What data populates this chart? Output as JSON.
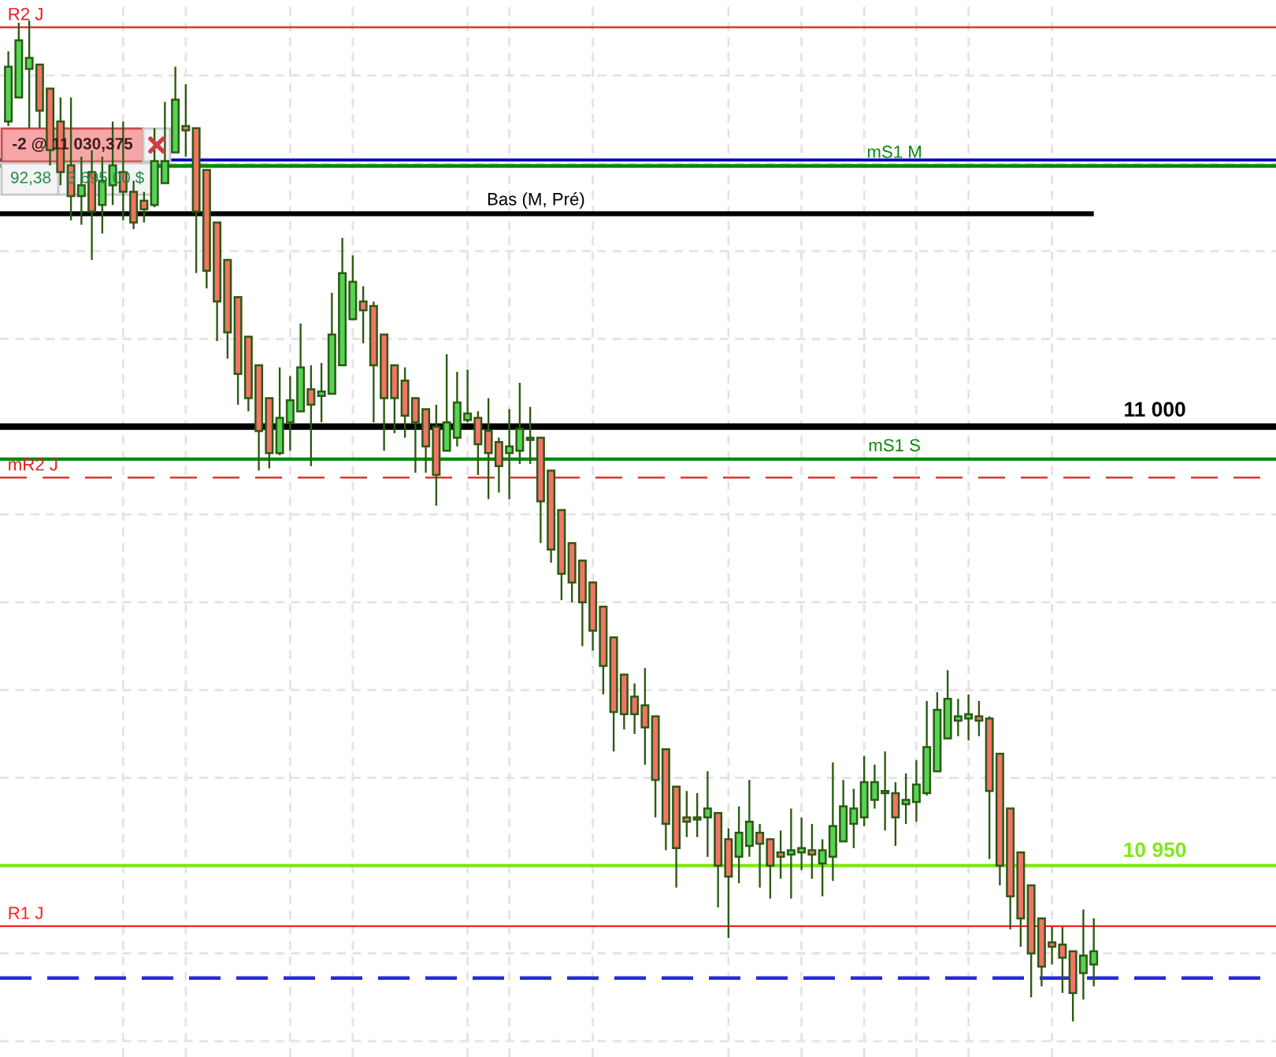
{
  "chart_data": {
    "type": "candlestick",
    "categories": [
      null,
      null,
      null,
      null,
      null,
      null,
      null,
      null,
      null,
      null,
      null,
      null,
      null,
      null,
      null,
      null,
      null,
      null,
      null,
      null,
      null,
      null,
      null,
      null,
      null,
      null,
      null,
      null,
      null,
      null,
      null,
      null,
      null,
      null,
      null,
      null,
      null,
      null,
      null,
      null,
      null,
      null,
      null,
      null,
      null,
      null,
      null,
      null,
      null,
      null,
      null,
      null,
      null,
      null,
      null,
      null,
      null,
      null,
      null,
      null,
      null,
      null,
      null,
      null,
      null,
      null,
      null,
      null,
      null,
      null,
      null,
      null,
      null,
      null,
      null,
      null,
      null,
      null,
      null,
      null,
      null,
      null,
      null,
      null,
      null,
      null,
      null,
      null,
      null,
      null,
      null,
      null,
      null,
      null,
      null,
      null,
      null,
      null,
      null,
      null,
      null,
      null,
      null,
      null,
      null
    ],
    "ohlc": [
      [
        11034.75,
        11042.75,
        11034.25,
        11041
      ],
      [
        11037.5,
        11046,
        11037.5,
        11044
      ],
      [
        11040.75,
        11046.25,
        11034,
        11042
      ],
      [
        11041.25,
        11041.25,
        11034,
        11036
      ],
      [
        11038.5,
        11038.5,
        11029.75,
        11031.5
      ],
      [
        11034.75,
        11037.5,
        11027.5,
        11029
      ],
      [
        11029.75,
        11037.5,
        11023.5,
        11026.25
      ],
      [
        11026.25,
        11030.75,
        11023,
        11027.5
      ],
      [
        11029,
        11031.5,
        11019,
        11024.5
      ],
      [
        11025.25,
        11030.75,
        11022,
        11028
      ],
      [
        11027.5,
        11034.75,
        11025.25,
        11029.75
      ],
      [
        11029,
        11034.75,
        11023.5,
        11026.75
      ],
      [
        11026.75,
        11028,
        11022.5,
        11023.25
      ],
      [
        11025.75,
        11026.75,
        11023.25,
        11024.75
      ],
      [
        11025.25,
        11034,
        11025,
        11030.25
      ],
      [
        11027.75,
        11037,
        11027.75,
        11030.25
      ],
      [
        11031.25,
        11041,
        11031.25,
        11037.25
      ],
      [
        11034.25,
        11039,
        11030.75,
        11033.75
      ],
      [
        11034,
        11034,
        11017.5,
        11024.5
      ],
      [
        11029.25,
        11029.25,
        11015.75,
        11017.75
      ],
      [
        11023.25,
        11023.25,
        11009.75,
        11014.25
      ],
      [
        11019,
        11019,
        11007.75,
        11010.75
      ],
      [
        11014.75,
        11014.75,
        11002.5,
        11006
      ],
      [
        11010.25,
        11010.25,
        11001.75,
        11003.25
      ],
      [
        11007,
        11007,
        10995,
        10999.5
      ],
      [
        11003.25,
        11003.25,
        10995.25,
        10997
      ],
      [
        10997,
        11006.75,
        10996.75,
        11001
      ],
      [
        11000.5,
        11005.75,
        10997.25,
        11003
      ],
      [
        11001.75,
        11011.75,
        11001.75,
        11006.75
      ],
      [
        11004.25,
        11007,
        10995.5,
        11002.5
      ],
      [
        11003.5,
        11007.25,
        11000.5,
        11004
      ],
      [
        11003.75,
        11015.25,
        11003.75,
        11010.5
      ],
      [
        11007,
        11021.5,
        11007,
        11017.5
      ],
      [
        11012.25,
        11019.5,
        11012.25,
        11016.5
      ],
      [
        11014.25,
        11016,
        11009.5,
        11013.25
      ],
      [
        11013.75,
        11014.25,
        11000.5,
        11007
      ],
      [
        11010.5,
        11010.5,
        10997.25,
        11003.25
      ],
      [
        11007,
        11007,
        10999.25,
        11003.25
      ],
      [
        11005.25,
        11006.75,
        10998.75,
        11001.25
      ],
      [
        11003.25,
        11003.25,
        10994.75,
        11000.5
      ],
      [
        11002,
        11002,
        10994.75,
        10997.75
      ],
      [
        11000,
        11002.5,
        10991,
        10994.5
      ],
      [
        10997.25,
        11008.25,
        10997.25,
        11000.5
      ],
      [
        10998.75,
        11006.25,
        10997.75,
        11002.75
      ],
      [
        11000.75,
        11006.5,
        11000.5,
        11001.5
      ],
      [
        11001,
        11001.75,
        10994.5,
        10998
      ],
      [
        10999.5,
        11003.25,
        10991.75,
        10997
      ],
      [
        10998.25,
        10998.75,
        10992.5,
        10995.5
      ],
      [
        10997,
        11002,
        10991.75,
        10997.75
      ],
      [
        10997.25,
        11005,
        10995.75,
        10999.75
      ],
      [
        10998.75,
        11002.25,
        10995.75,
        10998.5
      ],
      [
        10998.75,
        10998.75,
        10986.75,
        10991.5
      ],
      [
        10995,
        10995,
        10984.5,
        10986
      ],
      [
        10990.5,
        10990.5,
        10980.25,
        10983.25
      ],
      [
        10986.75,
        10986.75,
        10980,
        10982.25
      ],
      [
        10984.75,
        10984.75,
        10975,
        10980
      ],
      [
        10982.25,
        10982.25,
        10974.5,
        10976.75
      ],
      [
        10979.5,
        10979.5,
        10969.5,
        10972.75
      ],
      [
        10976,
        10976,
        10963,
        10967.5
      ],
      [
        10971.75,
        10971.75,
        10965.5,
        10967.25
      ],
      [
        10969.25,
        10970.75,
        10965,
        10967.25
      ],
      [
        10968.25,
        10972.5,
        10961.5,
        10965.75
      ],
      [
        10967,
        10967,
        10955.5,
        10959.75
      ],
      [
        10963.25,
        10963.25,
        10951.75,
        10954.75
      ],
      [
        10959,
        10959,
        10947.5,
        10952
      ],
      [
        10955.5,
        10958.5,
        10953.25,
        10955
      ],
      [
        10955.25,
        10958.25,
        10953.25,
        10955.5
      ],
      [
        10955.5,
        10960.75,
        10951,
        10956.5
      ],
      [
        10956,
        10956,
        10945.25,
        10950
      ],
      [
        10953,
        10954.25,
        10941.75,
        10948.75
      ],
      [
        10951,
        10956.75,
        10948,
        10953.75
      ],
      [
        10952.25,
        10959.75,
        10951,
        10955
      ],
      [
        10953.75,
        10954.75,
        10947.5,
        10952.5
      ],
      [
        10953,
        10953,
        10946.25,
        10950
      ],
      [
        10951.5,
        10954,
        10948.5,
        10951
      ],
      [
        10951.25,
        10956.5,
        10946.25,
        10951.75
      ],
      [
        10951.5,
        10955.5,
        10949.5,
        10952
      ],
      [
        10951.75,
        10954.75,
        10948.5,
        10951.25
      ],
      [
        10950.25,
        10953,
        10946.5,
        10951.75
      ],
      [
        10951,
        10961.75,
        10948.25,
        10954.5
      ],
      [
        10952.75,
        10959.75,
        10952.75,
        10956.75
      ],
      [
        10954.75,
        10958.75,
        10952,
        10956.5
      ],
      [
        10955.5,
        10962.5,
        10954.5,
        10959.5
      ],
      [
        10957.5,
        10961.5,
        10956.5,
        10959.5
      ],
      [
        10958.5,
        10963,
        10954,
        10958.25
      ],
      [
        10958.25,
        10959.5,
        10952.25,
        10955.5
      ],
      [
        10957,
        10960.5,
        10954.75,
        10957.5
      ],
      [
        10957.25,
        10962,
        10955,
        10959.25
      ],
      [
        10958.25,
        10968.75,
        10958,
        10963.5
      ],
      [
        10960.75,
        10969.75,
        10960.75,
        10967.75
      ],
      [
        10964.5,
        10972.25,
        10964.5,
        10969
      ],
      [
        10966.5,
        10969,
        10964.75,
        10967
      ],
      [
        10966.75,
        10969.5,
        10964.25,
        10967.25
      ],
      [
        10967,
        10968.75,
        10964.75,
        10966.5
      ],
      [
        10966.75,
        10967,
        10950.75,
        10958.5
      ],
      [
        10962.75,
        10962.75,
        10947.75,
        10950
      ],
      [
        10956.5,
        10956.5,
        10942.75,
        10946.5
      ],
      [
        10951.5,
        10951.5,
        10940.75,
        10944
      ],
      [
        10947.75,
        10947.75,
        10935,
        10940
      ],
      [
        10944,
        10944,
        10936.25,
        10938.5
      ],
      [
        10941.25,
        10943,
        10938.75,
        10940.75
      ],
      [
        10941,
        10943,
        10935.5,
        10939.5
      ],
      [
        10940.25,
        10940.25,
        10932.25,
        10935.5
      ],
      [
        10937.75,
        10945,
        10934.75,
        10939.75
      ],
      [
        10938.75,
        10944,
        10936.25,
        10940.25
      ]
    ],
    "colors": [
      "#54d454",
      "#54d454",
      "#54d454",
      "#f27468",
      "#f27468",
      "#f27468",
      "#f27468",
      "#54d454",
      "#f27468",
      "#54d454",
      "#54d454",
      "#f27468",
      "#f27468",
      "#f27468",
      "#54d454",
      "#54d454",
      "#54d454",
      "#f27468",
      "#f27468",
      "#f27468",
      "#f27468",
      "#f27468",
      "#f27468",
      "#f27468",
      "#f27468",
      "#f27468",
      "#54d454",
      "#54d454",
      "#54d454",
      "#f27468",
      "#54d454",
      "#54d454",
      "#54d454",
      "#54d454",
      "#f27468",
      "#f27468",
      "#f27468",
      "#f27468",
      "#f27468",
      "#f27468",
      "#f27468",
      "#f27468",
      "#54d454",
      "#54d454",
      "#54d454",
      "#f27468",
      "#f27468",
      "#f27468",
      "#54d454",
      "#54d454",
      "#f27468",
      "#f27468",
      "#f27468",
      "#f27468",
      "#f27468",
      "#f27468",
      "#f27468",
      "#f27468",
      "#f27468",
      "#f27468",
      "#f27468",
      "#f27468",
      "#f27468",
      "#f27468",
      "#f27468",
      "#f27468",
      "#54d454",
      "#54d454",
      "#f27468",
      "#f27468",
      "#54d454",
      "#54d454",
      "#f27468",
      "#f27468",
      "#f27468",
      "#54d454",
      "#54d454",
      "#f27468",
      "#54d454",
      "#54d454",
      "#54d454",
      "#54d454",
      "#54d454",
      "#54d454",
      "#f27468",
      "#f27468",
      "#54d454",
      "#54d454",
      "#54d454",
      "#54d454",
      "#54d454",
      "#54d454",
      "#54d454",
      "#f27468",
      "#f27468",
      "#f27468",
      "#f27468",
      "#f27468",
      "#f27468",
      "#f27468",
      "#f27468",
      "#f27468",
      "#f27468",
      "#54d454",
      "#54d454"
    ],
    "ylim": [
      10928.2,
      11048.6
    ],
    "yticks": [
      {
        "value": 10930,
        "label": null
      },
      {
        "value": 10940,
        "label": null
      },
      {
        "value": 10950,
        "label": null
      },
      {
        "value": 10960,
        "label": null
      },
      {
        "value": 10970,
        "label": null
      },
      {
        "value": 10980,
        "label": null
      },
      {
        "value": 10990,
        "label": null
      },
      {
        "value": 11000,
        "label": null
      },
      {
        "value": 11010,
        "label": null
      },
      {
        "value": 11020,
        "label": null
      },
      {
        "value": 11030,
        "label": null
      },
      {
        "value": 11040,
        "label": null
      }
    ],
    "grid": true,
    "ref_lines": [
      {
        "axis": "y",
        "value": 11045.5,
        "label": "R2 J",
        "color": "#e02020"
      },
      {
        "axis": "y",
        "value": 11030.375,
        "color": "#0000c8"
      },
      {
        "axis": "y",
        "value": 11029.7,
        "label": "mS1 M",
        "color": "#0a8a0a"
      },
      {
        "axis": "y",
        "value": 11024.25,
        "label": "Bas (M, Pré)",
        "color": "#000000"
      },
      {
        "axis": "y",
        "value": 11000,
        "label": "11 000",
        "color": "#000000"
      },
      {
        "axis": "y",
        "value": 10996.3,
        "label": "mS1 S",
        "color": "#0a8a0a"
      },
      {
        "axis": "y",
        "value": 10994.2,
        "label": "mR2 J",
        "color": "#e02020",
        "line_style": "dashed"
      },
      {
        "axis": "y",
        "value": 10950,
        "label": "10 950",
        "color": "#80e81c"
      },
      {
        "axis": "y",
        "value": 10943.1,
        "label": "R1 J",
        "color": "#ff2020"
      },
      {
        "axis": "y",
        "value": 10937.2,
        "color": "#2a2ad6",
        "line_style": "dashed"
      }
    ],
    "annotations": [
      {
        "text": "-2 @ 11 030,375",
        "y": 11030.375
      },
      "92,38",
      "3 695,00 $"
    ]
  }
}
